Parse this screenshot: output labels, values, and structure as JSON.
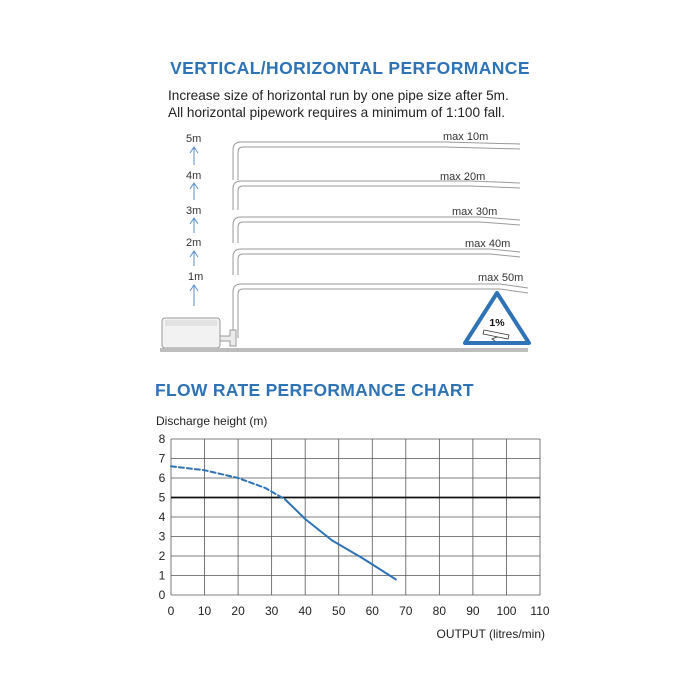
{
  "section1": {
    "title": "VERTICAL/HORIZONTAL PERFORMANCE",
    "intro_line1": "Increase size of horizontal run by one pipe size after 5m.",
    "intro_line2": "All horizontal pipework requires a minimum of 1:100 fall.",
    "height_labels": [
      "5m",
      "4m",
      "3m",
      "2m",
      "1m"
    ],
    "run_labels": [
      "max 10m",
      "max 20m",
      "max 30m",
      "max 40m",
      "max 50m"
    ],
    "fall_sign_text": "1%",
    "colors": {
      "accent": "#2e73b6",
      "pipe": "#9a9a9a",
      "ground": "#bdbdbd"
    }
  },
  "section2": {
    "title": "FLOW RATE PERFORMANCE CHART"
  },
  "chart_data": {
    "type": "line",
    "title": "FLOW RATE PERFORMANCE CHART",
    "ylabel": "Discharge height (m)",
    "xlabel": "OUTPUT (litres/min)",
    "xlim": [
      0,
      110
    ],
    "ylim": [
      0,
      8
    ],
    "x_ticks": [
      0,
      10,
      20,
      30,
      40,
      50,
      60,
      70,
      80,
      90,
      100,
      110
    ],
    "y_ticks": [
      0,
      1,
      2,
      3,
      4,
      5,
      6,
      7,
      8
    ],
    "grid": true,
    "reference_line": {
      "y": 5
    },
    "series": [
      {
        "style": "dashed",
        "color": "#2e73b6",
        "points": [
          [
            0,
            6.6
          ],
          [
            10,
            6.4
          ],
          [
            20,
            6.0
          ],
          [
            28,
            5.5
          ],
          [
            34,
            4.9
          ]
        ]
      },
      {
        "style": "solid",
        "color": "#2e73b6",
        "points": [
          [
            34,
            4.9
          ],
          [
            40,
            3.9
          ],
          [
            48,
            2.8
          ],
          [
            57,
            1.9
          ],
          [
            67,
            0.8
          ]
        ]
      }
    ]
  }
}
